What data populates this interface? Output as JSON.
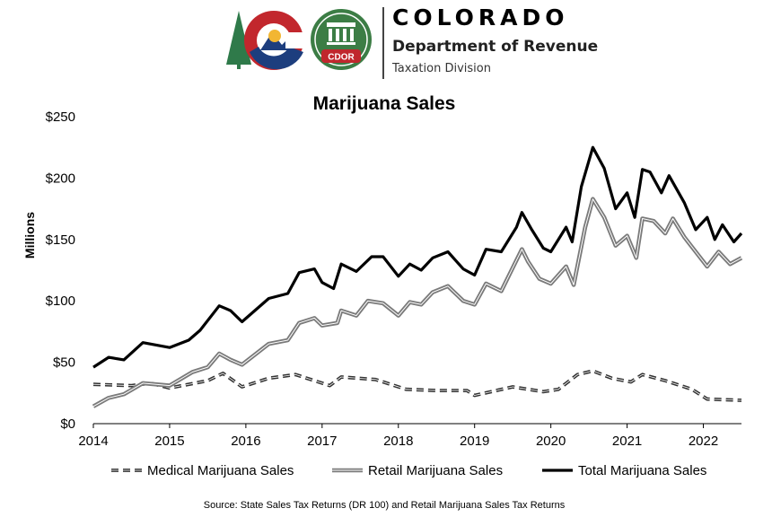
{
  "header": {
    "state": "COLORADO",
    "department": "Department of Revenue",
    "division": "Taxation Division",
    "logo_badge": "CDOR"
  },
  "colors": {
    "total": "#000000",
    "retail": "#7a7a7a",
    "medical": "#333333",
    "logo_green": "#2f7a4a",
    "logo_red": "#c2272d",
    "logo_blue": "#1d3e7e",
    "logo_gold": "#f2b632",
    "cdor_green": "#3c7d45",
    "cdor_red": "#c0272d"
  },
  "icons": [
    "colorado-state-logo-icon",
    "cdor-seal-icon"
  ],
  "chart_data": {
    "type": "line",
    "title": "Marijuana Sales",
    "ylabel": "Millions",
    "xlabel": "",
    "ylim": [
      0,
      250
    ],
    "xlim": [
      2014,
      2022.5
    ],
    "yticks": [
      0,
      50,
      100,
      150,
      200,
      250
    ],
    "ytick_labels": [
      "$0",
      "$50",
      "$100",
      "$150",
      "$200",
      "$250"
    ],
    "xticks": [
      2014,
      2015,
      2016,
      2017,
      2018,
      2019,
      2020,
      2021,
      2022
    ],
    "xtick_labels": [
      "2014",
      "2015",
      "2016",
      "2017",
      "2018",
      "2019",
      "2020",
      "2021",
      "2022"
    ],
    "grid": false,
    "legend_position": "bottom",
    "source": "Source: State Sales Tax Returns (DR 100) and Retail Marijuana  Sales Tax Returns",
    "series": [
      {
        "name": "Medical Marijuana Sales",
        "style": "dashed",
        "points": [
          [
            2014.0,
            32
          ],
          [
            2014.5,
            31
          ],
          [
            2014.75,
            33
          ],
          [
            2015.0,
            29
          ],
          [
            2015.5,
            35
          ],
          [
            2015.7,
            41
          ],
          [
            2015.95,
            30
          ],
          [
            2016.3,
            37
          ],
          [
            2016.65,
            40
          ],
          [
            2016.95,
            34
          ],
          [
            2017.1,
            31
          ],
          [
            2017.25,
            38
          ],
          [
            2017.7,
            36
          ],
          [
            2018.1,
            28
          ],
          [
            2018.5,
            27
          ],
          [
            2018.9,
            27
          ],
          [
            2019.0,
            23
          ],
          [
            2019.5,
            30
          ],
          [
            2019.9,
            26
          ],
          [
            2020.1,
            28
          ],
          [
            2020.35,
            40
          ],
          [
            2020.55,
            43
          ],
          [
            2020.8,
            37
          ],
          [
            2021.05,
            34
          ],
          [
            2021.2,
            40
          ],
          [
            2021.5,
            35
          ],
          [
            2021.85,
            28
          ],
          [
            2022.05,
            20
          ],
          [
            2022.5,
            19
          ]
        ]
      },
      {
        "name": "Retail Marijuana Sales",
        "style": "solid-gray",
        "points": [
          [
            2014.0,
            14
          ],
          [
            2014.2,
            21
          ],
          [
            2014.4,
            24
          ],
          [
            2014.65,
            33
          ],
          [
            2015.0,
            31
          ],
          [
            2015.3,
            42
          ],
          [
            2015.5,
            46
          ],
          [
            2015.65,
            57
          ],
          [
            2015.8,
            52
          ],
          [
            2015.95,
            48
          ],
          [
            2016.3,
            65
          ],
          [
            2016.55,
            68
          ],
          [
            2016.7,
            82
          ],
          [
            2016.9,
            86
          ],
          [
            2017.0,
            80
          ],
          [
            2017.2,
            82
          ],
          [
            2017.25,
            92
          ],
          [
            2017.45,
            88
          ],
          [
            2017.6,
            100
          ],
          [
            2017.8,
            98
          ],
          [
            2018.0,
            88
          ],
          [
            2018.15,
            99
          ],
          [
            2018.3,
            97
          ],
          [
            2018.45,
            107
          ],
          [
            2018.65,
            112
          ],
          [
            2018.85,
            100
          ],
          [
            2019.0,
            97
          ],
          [
            2019.15,
            114
          ],
          [
            2019.35,
            108
          ],
          [
            2019.5,
            127
          ],
          [
            2019.62,
            142
          ],
          [
            2019.7,
            132
          ],
          [
            2019.85,
            118
          ],
          [
            2020.0,
            114
          ],
          [
            2020.2,
            128
          ],
          [
            2020.3,
            113
          ],
          [
            2020.45,
            160
          ],
          [
            2020.55,
            183
          ],
          [
            2020.7,
            168
          ],
          [
            2020.85,
            145
          ],
          [
            2021.0,
            153
          ],
          [
            2021.12,
            135
          ],
          [
            2021.2,
            167
          ],
          [
            2021.35,
            165
          ],
          [
            2021.5,
            155
          ],
          [
            2021.6,
            167
          ],
          [
            2021.75,
            152
          ],
          [
            2021.9,
            140
          ],
          [
            2022.05,
            128
          ],
          [
            2022.2,
            140
          ],
          [
            2022.35,
            130
          ],
          [
            2022.5,
            135
          ]
        ]
      },
      {
        "name": "Total Marijuana Sales",
        "style": "solid-black",
        "points": [
          [
            2014.0,
            46
          ],
          [
            2014.2,
            54
          ],
          [
            2014.4,
            52
          ],
          [
            2014.65,
            66
          ],
          [
            2015.0,
            62
          ],
          [
            2015.25,
            68
          ],
          [
            2015.4,
            76
          ],
          [
            2015.65,
            96
          ],
          [
            2015.8,
            92
          ],
          [
            2015.95,
            83
          ],
          [
            2016.3,
            102
          ],
          [
            2016.55,
            106
          ],
          [
            2016.7,
            123
          ],
          [
            2016.9,
            126
          ],
          [
            2017.0,
            115
          ],
          [
            2017.15,
            110
          ],
          [
            2017.25,
            130
          ],
          [
            2017.45,
            124
          ],
          [
            2017.65,
            136
          ],
          [
            2017.8,
            136
          ],
          [
            2018.0,
            120
          ],
          [
            2018.15,
            130
          ],
          [
            2018.3,
            125
          ],
          [
            2018.45,
            135
          ],
          [
            2018.65,
            140
          ],
          [
            2018.85,
            126
          ],
          [
            2019.0,
            121
          ],
          [
            2019.15,
            142
          ],
          [
            2019.35,
            140
          ],
          [
            2019.55,
            160
          ],
          [
            2019.62,
            172
          ],
          [
            2019.75,
            158
          ],
          [
            2019.9,
            143
          ],
          [
            2020.0,
            140
          ],
          [
            2020.2,
            160
          ],
          [
            2020.28,
            148
          ],
          [
            2020.4,
            193
          ],
          [
            2020.55,
            225
          ],
          [
            2020.7,
            208
          ],
          [
            2020.85,
            175
          ],
          [
            2021.0,
            188
          ],
          [
            2021.1,
            168
          ],
          [
            2021.2,
            207
          ],
          [
            2021.3,
            205
          ],
          [
            2021.45,
            188
          ],
          [
            2021.55,
            202
          ],
          [
            2021.75,
            180
          ],
          [
            2021.9,
            158
          ],
          [
            2022.05,
            168
          ],
          [
            2022.15,
            150
          ],
          [
            2022.25,
            162
          ],
          [
            2022.4,
            148
          ],
          [
            2022.5,
            155
          ]
        ]
      }
    ]
  }
}
